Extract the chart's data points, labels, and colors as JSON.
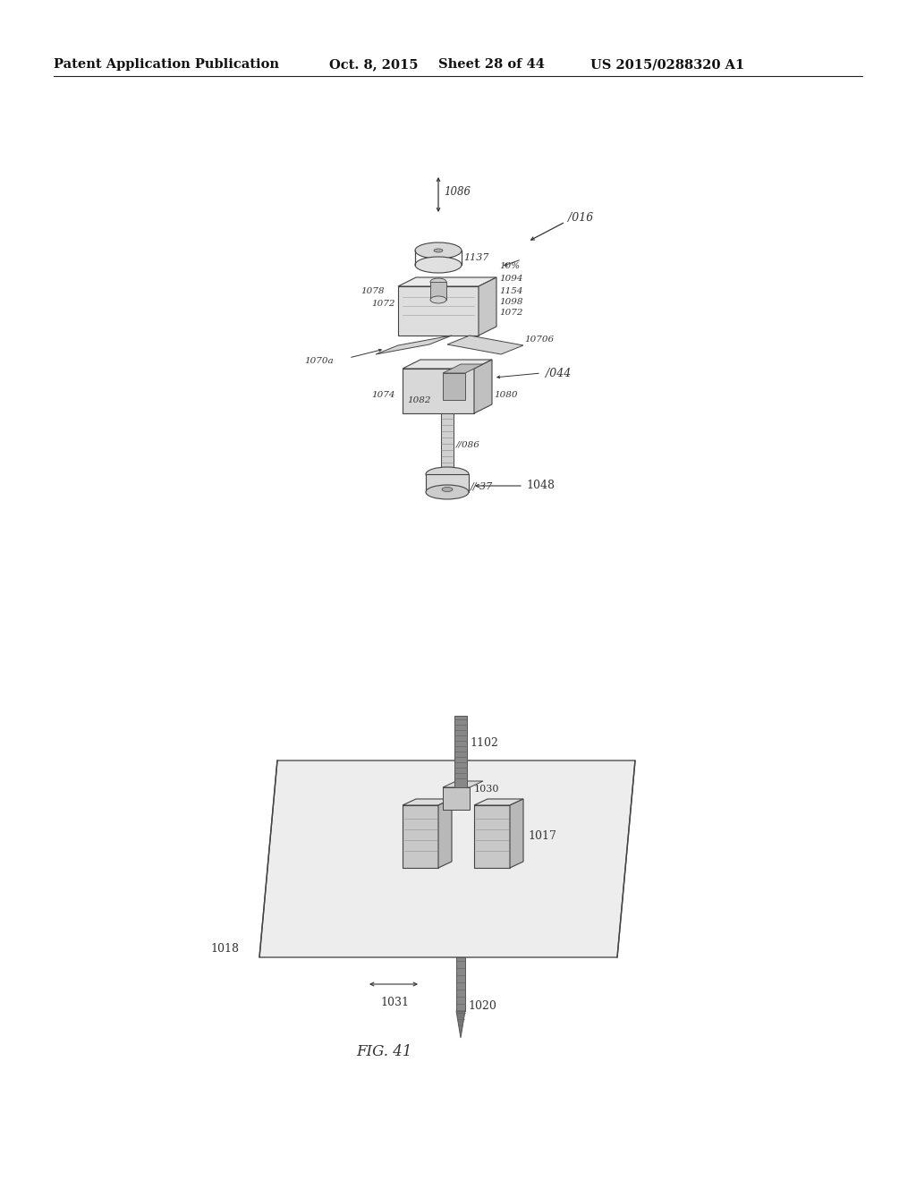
{
  "background_color": "#ffffff",
  "page_bg": "#f5f5f0",
  "header_text": "Patent Application Publication",
  "header_date": "Oct. 8, 2015",
  "header_sheet": "Sheet 28 of 44",
  "header_patent": "US 2015/0288320 A1",
  "figure_label": "FIG. 41",
  "line_color": "#555555",
  "light_gray": "#cccccc",
  "mid_gray": "#aaaaaa",
  "dark_gray": "#888888",
  "sketch_color": "#444444"
}
